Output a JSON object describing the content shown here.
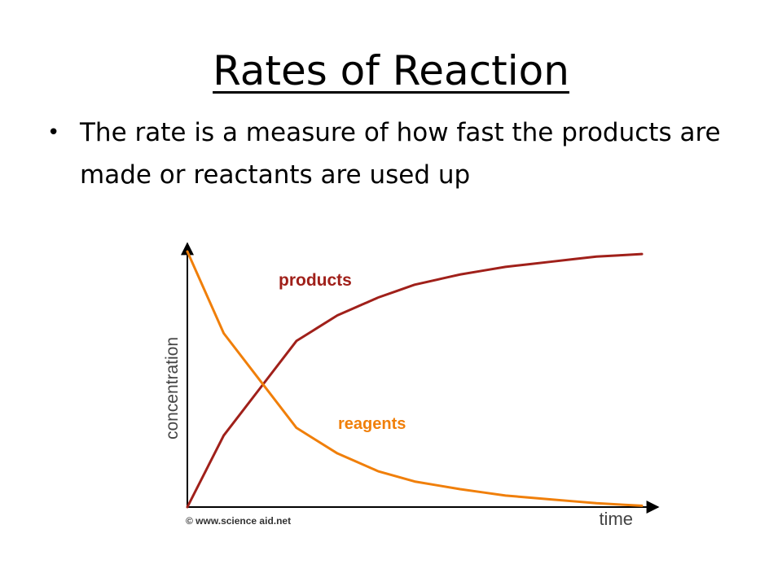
{
  "slide": {
    "title": "Rates of Reaction",
    "bullets": [
      "The rate is a measure of how fast the products are made or reactants are used up"
    ],
    "bullet_symbol": "•"
  },
  "chart_data": {
    "type": "line",
    "title": "",
    "xlabel": "time",
    "ylabel": "concentration",
    "credit": "© www.science aid.net",
    "grid": false,
    "ylim": [
      0,
      1
    ],
    "xlim": [
      0,
      1
    ],
    "series": [
      {
        "name": "products",
        "color": "#a0201a",
        "x": [
          0,
          0.08,
          0.24,
          0.33,
          0.42,
          0.5,
          0.6,
          0.7,
          0.8,
          0.9,
          1.0
        ],
        "y": [
          0,
          0.28,
          0.65,
          0.75,
          0.82,
          0.87,
          0.91,
          0.94,
          0.96,
          0.98,
          0.99
        ]
      },
      {
        "name": "reagents",
        "color": "#f07f0a",
        "x": [
          0,
          0.08,
          0.24,
          0.33,
          0.42,
          0.5,
          0.6,
          0.7,
          0.8,
          0.9,
          1.0
        ],
        "y": [
          1.0,
          0.68,
          0.31,
          0.21,
          0.14,
          0.1,
          0.07,
          0.045,
          0.03,
          0.015,
          0.005
        ]
      }
    ]
  }
}
